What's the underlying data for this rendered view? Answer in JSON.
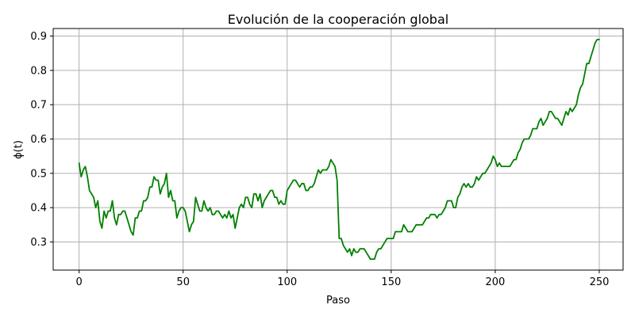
{
  "chart_data": {
    "type": "line",
    "title": "Evolución de la cooperación global",
    "xlabel": "Paso",
    "ylabel": "ϕ(t)",
    "xlim": [
      -12.45,
      261.45
    ],
    "ylim": [
      0.218,
      0.922
    ],
    "xticks": [
      0,
      50,
      100,
      150,
      200,
      250
    ],
    "yticks": [
      0.3,
      0.4,
      0.5,
      0.6,
      0.7,
      0.8,
      0.9
    ],
    "xtick_labels": [
      "0",
      "50",
      "100",
      "150",
      "200",
      "250"
    ],
    "ytick_labels": [
      "0.3",
      "0.4",
      "0.5",
      "0.6",
      "0.7",
      "0.8",
      "0.9"
    ],
    "grid": true,
    "series": [
      {
        "color": "#008000",
        "x_start": 0,
        "x_step": 1,
        "values": [
          0.53,
          0.49,
          0.51,
          0.52,
          0.49,
          0.45,
          0.44,
          0.43,
          0.4,
          0.42,
          0.36,
          0.34,
          0.39,
          0.37,
          0.39,
          0.39,
          0.42,
          0.37,
          0.35,
          0.38,
          0.38,
          0.39,
          0.39,
          0.37,
          0.35,
          0.33,
          0.32,
          0.37,
          0.37,
          0.39,
          0.39,
          0.42,
          0.42,
          0.43,
          0.46,
          0.46,
          0.49,
          0.48,
          0.48,
          0.44,
          0.46,
          0.47,
          0.5,
          0.43,
          0.45,
          0.42,
          0.42,
          0.37,
          0.39,
          0.4,
          0.4,
          0.39,
          0.36,
          0.33,
          0.35,
          0.36,
          0.43,
          0.41,
          0.39,
          0.39,
          0.42,
          0.4,
          0.39,
          0.4,
          0.38,
          0.38,
          0.39,
          0.39,
          0.38,
          0.37,
          0.38,
          0.37,
          0.39,
          0.37,
          0.38,
          0.34,
          0.37,
          0.4,
          0.41,
          0.4,
          0.43,
          0.43,
          0.41,
          0.4,
          0.44,
          0.44,
          0.42,
          0.44,
          0.4,
          0.42,
          0.43,
          0.44,
          0.45,
          0.45,
          0.43,
          0.43,
          0.41,
          0.42,
          0.41,
          0.41,
          0.45,
          0.46,
          0.47,
          0.48,
          0.48,
          0.47,
          0.46,
          0.47,
          0.47,
          0.45,
          0.45,
          0.46,
          0.46,
          0.47,
          0.49,
          0.51,
          0.5,
          0.51,
          0.51,
          0.51,
          0.52,
          0.54,
          0.53,
          0.52,
          0.48,
          0.31,
          0.31,
          0.29,
          0.28,
          0.27,
          0.28,
          0.26,
          0.28,
          0.27,
          0.27,
          0.28,
          0.28,
          0.28,
          0.27,
          0.26,
          0.25,
          0.25,
          0.25,
          0.27,
          0.28,
          0.28,
          0.29,
          0.3,
          0.31,
          0.31,
          0.31,
          0.31,
          0.33,
          0.33,
          0.33,
          0.33,
          0.35,
          0.34,
          0.33,
          0.33,
          0.33,
          0.34,
          0.35,
          0.35,
          0.35,
          0.35,
          0.36,
          0.37,
          0.37,
          0.38,
          0.38,
          0.38,
          0.37,
          0.38,
          0.38,
          0.39,
          0.4,
          0.42,
          0.42,
          0.42,
          0.4,
          0.4,
          0.43,
          0.44,
          0.46,
          0.47,
          0.46,
          0.47,
          0.46,
          0.46,
          0.47,
          0.49,
          0.48,
          0.49,
          0.5,
          0.5,
          0.51,
          0.52,
          0.53,
          0.55,
          0.54,
          0.52,
          0.53,
          0.52,
          0.52,
          0.52,
          0.52,
          0.52,
          0.53,
          0.54,
          0.54,
          0.56,
          0.57,
          0.59,
          0.6,
          0.6,
          0.6,
          0.61,
          0.63,
          0.63,
          0.63,
          0.65,
          0.66,
          0.64,
          0.65,
          0.66,
          0.68,
          0.68,
          0.67,
          0.66,
          0.66,
          0.65,
          0.64,
          0.66,
          0.68,
          0.67,
          0.69,
          0.68,
          0.69,
          0.7,
          0.73,
          0.75,
          0.76,
          0.79,
          0.82,
          0.82,
          0.84,
          0.86,
          0.88,
          0.89,
          0.89
        ]
      }
    ]
  }
}
